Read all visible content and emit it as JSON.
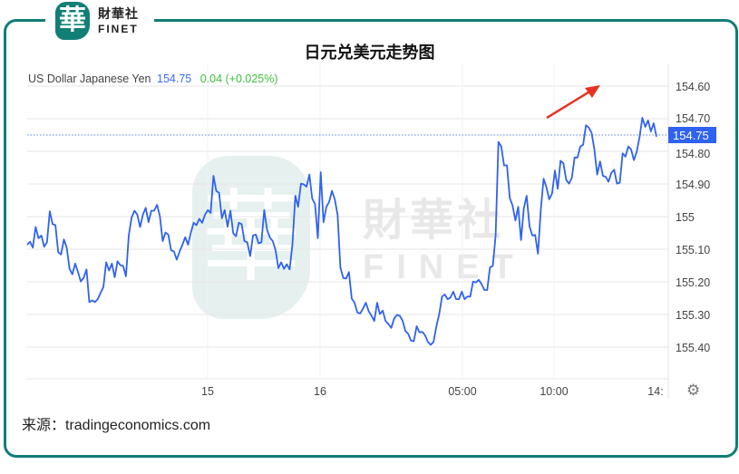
{
  "brand": {
    "logo_glyph": "華",
    "name_cn": "財華社",
    "name_en": "FINET"
  },
  "title": "日元兑美元走势图",
  "legend": {
    "instrument": "US Dollar Japanese Yen",
    "price": "154.75",
    "change": "0.04 (+0.025%)"
  },
  "source": "来源：tradingeconomics.com",
  "current_label": "154.75",
  "colors": {
    "line": "#2f62f0",
    "frame": "#0f7e76",
    "change": "#3ec13e",
    "arrow": "#e53222",
    "price_tag": "#2f62f0"
  },
  "icons": {
    "settings": "gear-icon",
    "annotation": "red-arrow"
  },
  "chart_data": {
    "type": "line",
    "title": "",
    "xlabel": "",
    "ylabel": "",
    "y_inverted": true,
    "ylim": [
      154.6,
      155.5
    ],
    "grid": true,
    "y_ticks": [
      "154.60",
      "154.70",
      "154.80",
      "154.90",
      "155",
      "155.10",
      "155.20",
      "155.30",
      "155.40"
    ],
    "x_ticks": [
      "15",
      "16",
      "05:00",
      "10:00",
      "14:"
    ],
    "current_value": 154.75,
    "series": [
      {
        "values": [
          155.086,
          155.077,
          155.095,
          155.032,
          155.066,
          155.058,
          155.092,
          155.079,
          154.984,
          155.023,
          155.026,
          155.109,
          155.116,
          155.07,
          155.095,
          155.16,
          155.177,
          155.144,
          155.17,
          155.199,
          155.188,
          155.162,
          155.262,
          155.257,
          155.262,
          155.253,
          155.234,
          155.216,
          155.14,
          155.165,
          155.144,
          155.186,
          155.137,
          155.149,
          155.151,
          155.183,
          155.058,
          155.003,
          154.982,
          154.994,
          155.032,
          154.994,
          154.973,
          155.017,
          154.982,
          154.982,
          154.964,
          154.998,
          155.075,
          155.049,
          155.055,
          155.103,
          155.107,
          155.132,
          155.107,
          155.086,
          155.063,
          155.086,
          155.049,
          155.019,
          155.026,
          155.007,
          155.019,
          154.994,
          154.98,
          154.989,
          154.875,
          154.921,
          154.927,
          155.005,
          154.98,
          155.031,
          154.982,
          155.051,
          155.06,
          155.019,
          155.023,
          155.075,
          155.079,
          155.121,
          155.058,
          155.055,
          155.082,
          155.079,
          154.98,
          155.04,
          155.064,
          155.075,
          155.103,
          155.158,
          155.14,
          155.16,
          155.146,
          155.162,
          155.086,
          154.936,
          154.97,
          154.899,
          154.901,
          154.908,
          154.871,
          154.945,
          154.961,
          155.066,
          154.864,
          155.017,
          154.97,
          154.955,
          154.921,
          154.947,
          154.994,
          155.156,
          155.188,
          155.19,
          155.17,
          155.251,
          155.264,
          155.294,
          155.297,
          155.282,
          155.264,
          155.29,
          155.304,
          155.32,
          155.264,
          155.299,
          155.288,
          155.32,
          155.329,
          155.341,
          155.313,
          155.301,
          155.304,
          155.318,
          155.35,
          155.359,
          155.38,
          155.382,
          155.336,
          155.355,
          155.353,
          155.364,
          155.384,
          155.393,
          155.384,
          155.336,
          155.299,
          155.245,
          155.239,
          155.253,
          155.248,
          155.23,
          155.253,
          155.253,
          155.23,
          155.253,
          155.245,
          155.245,
          155.199,
          155.202,
          155.194,
          155.206,
          155.225,
          155.225,
          155.155,
          155.151,
          155.058,
          154.771,
          154.785,
          154.843,
          154.843,
          154.943,
          154.966,
          155.012,
          154.97,
          155.072,
          154.975,
          154.936,
          155.03,
          155.058,
          155.056,
          155.114,
          154.98,
          154.884,
          154.91,
          154.947,
          154.929,
          154.859,
          154.915,
          154.829,
          154.836,
          154.887,
          154.899,
          154.882,
          154.819,
          154.819,
          154.785,
          154.78,
          154.72,
          154.727,
          154.743,
          154.794,
          154.871,
          154.831,
          154.875,
          154.878,
          154.893,
          154.866,
          154.856,
          154.899,
          154.896,
          154.806,
          154.816,
          154.785,
          154.794,
          154.827,
          154.801,
          154.757,
          154.697,
          154.725,
          154.705,
          154.739,
          154.714,
          154.755
        ]
      }
    ]
  }
}
